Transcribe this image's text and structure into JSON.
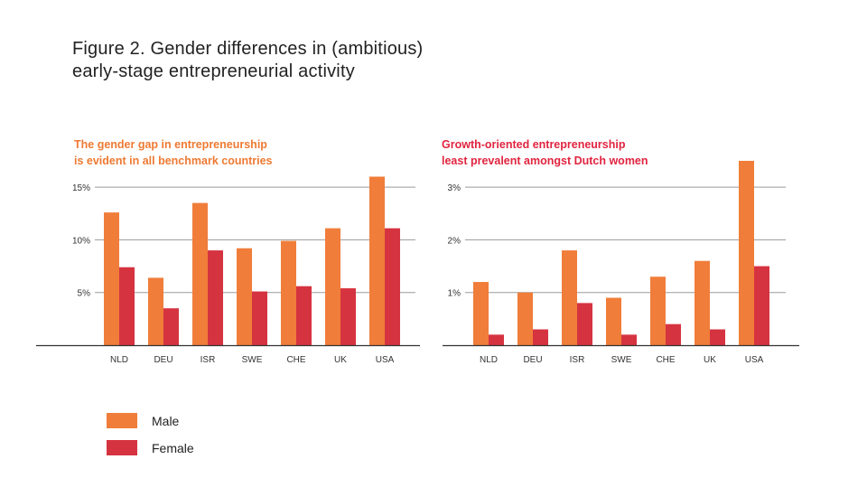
{
  "figure": {
    "title_line1": "Figure 2. Gender differences in (ambitious)",
    "title_line2": "early-stage entrepreneurial activity"
  },
  "colors": {
    "male": "#F07D3A",
    "female": "#D63340",
    "left_subtitle": "#EE7A33",
    "right_subtitle": "#E0243F",
    "grid": "#9a9a9a",
    "axis": "#333333"
  },
  "legend": {
    "male": "Male",
    "female": "Female"
  },
  "chart_data": [
    {
      "type": "bar",
      "title": "The gender gap in entrepreneurship is evident in all benchmark countries",
      "title_lines": [
        "The gender gap in entrepreneurship",
        "is evident in all benchmark countries"
      ],
      "categories": [
        "NLD",
        "DEU",
        "ISR",
        "SWE",
        "CHE",
        "UK",
        "USA"
      ],
      "series": [
        {
          "name": "Male",
          "values": [
            12.6,
            6.4,
            13.5,
            9.2,
            9.9,
            11.1,
            16.0
          ]
        },
        {
          "name": "Female",
          "values": [
            7.4,
            3.5,
            9.0,
            5.1,
            5.6,
            5.4,
            11.1
          ]
        }
      ],
      "yticks": [
        5,
        10,
        15
      ],
      "ytick_labels": [
        "5%",
        "10%",
        "15%"
      ],
      "ylim": [
        0,
        17.5
      ],
      "xlabel": "",
      "ylabel": ""
    },
    {
      "type": "bar",
      "title": "Growth-oriented entrepreneurship least prevalent amongst Dutch women",
      "title_lines": [
        "Growth-oriented entrepreneurship",
        "least prevalent amongst Dutch women"
      ],
      "categories": [
        "NLD",
        "DEU",
        "ISR",
        "SWE",
        "CHE",
        "UK",
        "USA"
      ],
      "series": [
        {
          "name": "Male",
          "values": [
            1.2,
            1.0,
            1.8,
            0.9,
            1.3,
            1.6,
            3.5
          ]
        },
        {
          "name": "Female",
          "values": [
            0.2,
            0.3,
            0.8,
            0.2,
            0.4,
            0.3,
            1.5
          ]
        }
      ],
      "yticks": [
        1,
        2,
        3
      ],
      "ytick_labels": [
        "1%",
        "2%",
        "3%"
      ],
      "ylim": [
        0,
        3.5
      ],
      "xlabel": "",
      "ylabel": ""
    }
  ]
}
